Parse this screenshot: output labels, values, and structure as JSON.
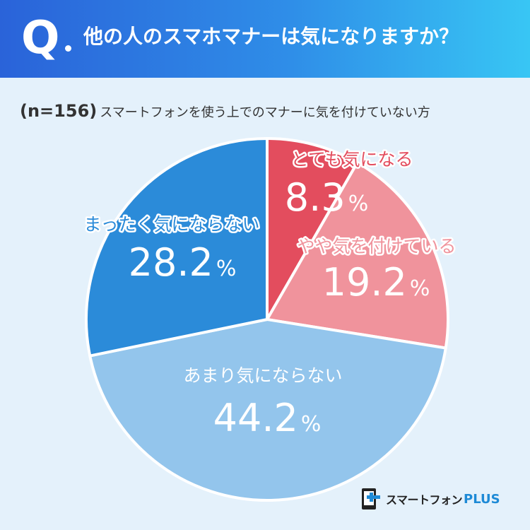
{
  "header": {
    "q_letter": "Q",
    "question": "他の人のスマホマナーは気になりますか？"
  },
  "subtitle": {
    "sample_size": "(n=156)",
    "text": "スマートフォンを使う上でのマナーに気を付けていない方"
  },
  "chart_data": {
    "type": "pie",
    "title": "他の人のスマホマナーは気になりますか？",
    "subtitle": "(n=156) スマートフォンを使う上でのマナーに気を付けていない方",
    "start_angle": "12 o'clock, clockwise",
    "slices": [
      {
        "label": "とても気になる",
        "value": 8.3,
        "display": "8.3",
        "color": "#e34d5e",
        "label_color": "#e34d5e"
      },
      {
        "label": "やや気を付けている",
        "value": 19.2,
        "display": "19.2",
        "color": "#f0939c",
        "label_color": "#f0939c"
      },
      {
        "label": "あまり気にならない",
        "value": 44.2,
        "display": "44.2",
        "color": "#93c5ec",
        "label_color": "#ffffff"
      },
      {
        "label": "まったく気にならない",
        "value": 28.2,
        "display": "28.2",
        "color": "#2b8bd9",
        "label_color": "#2b8bd9"
      }
    ],
    "percent_sign": "%"
  },
  "logo": {
    "text": "スマートフォン",
    "plus": "PLUS"
  },
  "colors": {
    "background": "#e4f1fb",
    "header_start": "#2a63d9",
    "header_end": "#38c6f4"
  }
}
